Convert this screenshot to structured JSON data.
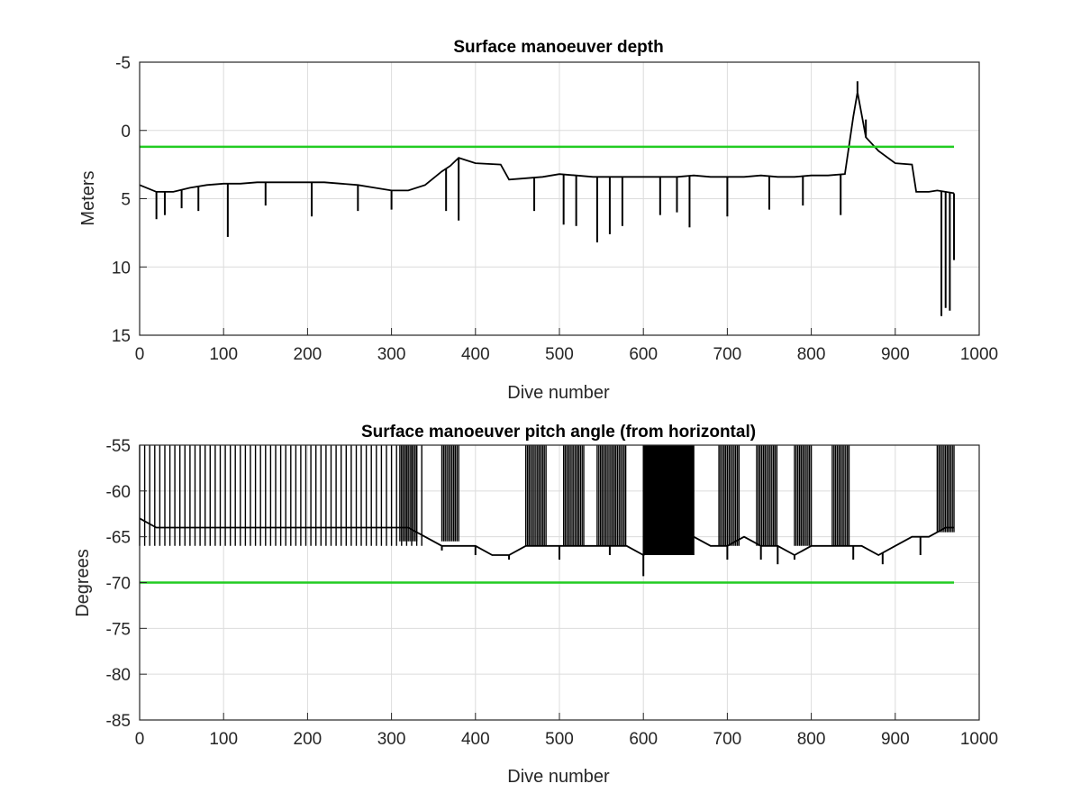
{
  "chart_data": [
    {
      "type": "line",
      "title": "Surface manoeuver depth",
      "xlabel": "Dive number",
      "ylabel": "Meters",
      "xlim": [
        0,
        1000
      ],
      "ylim": [
        -5,
        15
      ],
      "y_reversed": true,
      "grid": true,
      "xticks": [
        "0",
        "100",
        "200",
        "300",
        "400",
        "500",
        "600",
        "700",
        "800",
        "900",
        "1000"
      ],
      "yticks": [
        "-5",
        "0",
        "5",
        "10",
        "15"
      ],
      "xtick_values": [
        0,
        100,
        200,
        300,
        400,
        500,
        600,
        700,
        800,
        900,
        1000
      ],
      "ytick_values": [
        -5,
        0,
        5,
        10,
        15
      ],
      "colors": {
        "series": "#000000",
        "threshold": "#22cc22"
      },
      "threshold": {
        "y": 1.2,
        "x_range": [
          0,
          970
        ]
      },
      "series": [
        {
          "x": [
            0,
            20,
            40,
            60,
            80,
            100,
            120,
            140,
            160,
            180,
            200,
            220,
            240,
            260,
            280,
            300,
            320,
            340,
            360,
            370,
            380,
            400,
            430,
            440,
            460,
            480,
            500,
            520,
            540,
            560,
            580,
            600,
            620,
            640,
            660,
            680,
            700,
            720,
            740,
            760,
            780,
            800,
            820,
            840,
            850,
            855,
            865,
            880,
            900,
            920,
            925,
            940,
            950,
            960,
            970
          ],
          "y": [
            4.0,
            4.5,
            4.5,
            4.2,
            4.0,
            3.9,
            3.9,
            3.8,
            3.8,
            3.8,
            3.8,
            3.8,
            3.9,
            4.0,
            4.2,
            4.4,
            4.4,
            4.0,
            3.0,
            2.6,
            2.0,
            2.4,
            2.5,
            3.6,
            3.5,
            3.4,
            3.2,
            3.3,
            3.4,
            3.4,
            3.4,
            3.4,
            3.4,
            3.4,
            3.3,
            3.4,
            3.4,
            3.4,
            3.3,
            3.4,
            3.4,
            3.3,
            3.3,
            3.2,
            -1.0,
            -2.8,
            0.5,
            1.5,
            2.4,
            2.5,
            4.5,
            4.5,
            4.4,
            4.5,
            4.6
          ]
        }
      ],
      "spikes": [
        {
          "x": 20,
          "y": 6.5
        },
        {
          "x": 30,
          "y": 6.2
        },
        {
          "x": 50,
          "y": 5.7
        },
        {
          "x": 70,
          "y": 5.9
        },
        {
          "x": 105,
          "y": 7.8
        },
        {
          "x": 150,
          "y": 5.5
        },
        {
          "x": 205,
          "y": 6.3
        },
        {
          "x": 260,
          "y": 5.9
        },
        {
          "x": 300,
          "y": 5.8
        },
        {
          "x": 365,
          "y": 5.9
        },
        {
          "x": 380,
          "y": 6.6
        },
        {
          "x": 470,
          "y": 5.9
        },
        {
          "x": 505,
          "y": 6.9
        },
        {
          "x": 520,
          "y": 7.0
        },
        {
          "x": 545,
          "y": 8.2
        },
        {
          "x": 560,
          "y": 7.6
        },
        {
          "x": 575,
          "y": 7.0
        },
        {
          "x": 620,
          "y": 6.2
        },
        {
          "x": 640,
          "y": 6.0
        },
        {
          "x": 655,
          "y": 7.1
        },
        {
          "x": 700,
          "y": 6.3
        },
        {
          "x": 750,
          "y": 5.8
        },
        {
          "x": 790,
          "y": 5.5
        },
        {
          "x": 835,
          "y": 6.2
        },
        {
          "x": 855,
          "y": -3.6
        },
        {
          "x": 865,
          "y": -0.8
        },
        {
          "x": 955,
          "y": 13.6
        },
        {
          "x": 960,
          "y": 13.0
        },
        {
          "x": 965,
          "y": 13.2
        },
        {
          "x": 970,
          "y": 9.5
        }
      ]
    },
    {
      "type": "line",
      "title": "Surface manoeuver pitch angle (from horizontal)",
      "xlabel": "Dive number",
      "ylabel": "Degrees",
      "xlim": [
        0,
        1000
      ],
      "ylim": [
        -85,
        -55
      ],
      "grid": true,
      "xticks": [
        "0",
        "100",
        "200",
        "300",
        "400",
        "500",
        "600",
        "700",
        "800",
        "900",
        "1000"
      ],
      "yticks": [
        "-55",
        "-60",
        "-65",
        "-70",
        "-75",
        "-80",
        "-85"
      ],
      "xtick_values": [
        0,
        100,
        200,
        300,
        400,
        500,
        600,
        700,
        800,
        900,
        1000
      ],
      "ytick_values": [
        -55,
        -60,
        -65,
        -70,
        -75,
        -80,
        -85
      ],
      "colors": {
        "series": "#000000",
        "threshold": "#22cc22"
      },
      "threshold": {
        "y": -70,
        "x_range": [
          0,
          970
        ]
      },
      "series": [
        {
          "x": [
            0,
            20,
            40,
            60,
            80,
            100,
            120,
            140,
            160,
            180,
            200,
            220,
            240,
            260,
            280,
            300,
            320,
            340,
            360,
            380,
            400,
            420,
            440,
            460,
            480,
            500,
            520,
            540,
            560,
            580,
            600,
            620,
            640,
            660,
            680,
            700,
            720,
            740,
            760,
            780,
            800,
            820,
            840,
            860,
            880,
            900,
            920,
            940,
            960,
            970
          ],
          "y": [
            -63,
            -64,
            -64,
            -64,
            -64,
            -64,
            -64,
            -64,
            -64,
            -64,
            -64,
            -64,
            -64,
            -64,
            -64,
            -64,
            -64,
            -65,
            -66,
            -66,
            -66,
            -67,
            -67,
            -66,
            -66,
            -66,
            -66,
            -66,
            -66,
            -66,
            -67,
            -66,
            -66,
            -65,
            -66,
            -66,
            -65,
            -66,
            -66,
            -67,
            -66,
            -66,
            -66,
            -66,
            -67,
            -66,
            -65,
            -65,
            -64,
            -64
          ]
        }
      ],
      "spikes": [
        {
          "x": 360,
          "y": -66.5
        },
        {
          "x": 400,
          "y": -67.0
        },
        {
          "x": 440,
          "y": -67.5
        },
        {
          "x": 500,
          "y": -67.5
        },
        {
          "x": 560,
          "y": -67.0
        },
        {
          "x": 600,
          "y": -69.3
        },
        {
          "x": 700,
          "y": -67.5
        },
        {
          "x": 740,
          "y": -67.5
        },
        {
          "x": 760,
          "y": -68.0
        },
        {
          "x": 780,
          "y": -67.5
        },
        {
          "x": 850,
          "y": -67.5
        },
        {
          "x": 885,
          "y": -68.0
        },
        {
          "x": 930,
          "y": -67.0
        }
      ],
      "bursts": [
        {
          "from": 0,
          "to": 340,
          "spacing": 6,
          "low": -66
        },
        {
          "from": 310,
          "to": 330,
          "spacing": 2,
          "low": -65.5
        },
        {
          "from": 360,
          "to": 380,
          "spacing": 2,
          "low": -65.5
        },
        {
          "from": 460,
          "to": 485,
          "spacing": 2,
          "low": -66
        },
        {
          "from": 505,
          "to": 530,
          "spacing": 2,
          "low": -66
        },
        {
          "from": 545,
          "to": 580,
          "spacing": 2,
          "low": -66
        },
        {
          "from": 600,
          "to": 660,
          "spacing": 1.5,
          "low": -67
        },
        {
          "from": 690,
          "to": 715,
          "spacing": 2,
          "low": -66
        },
        {
          "from": 735,
          "to": 760,
          "spacing": 2,
          "low": -66
        },
        {
          "from": 780,
          "to": 800,
          "spacing": 2,
          "low": -66
        },
        {
          "from": 825,
          "to": 845,
          "spacing": 2,
          "low": -66
        },
        {
          "from": 950,
          "to": 970,
          "spacing": 2,
          "low": -64.5
        }
      ]
    }
  ]
}
